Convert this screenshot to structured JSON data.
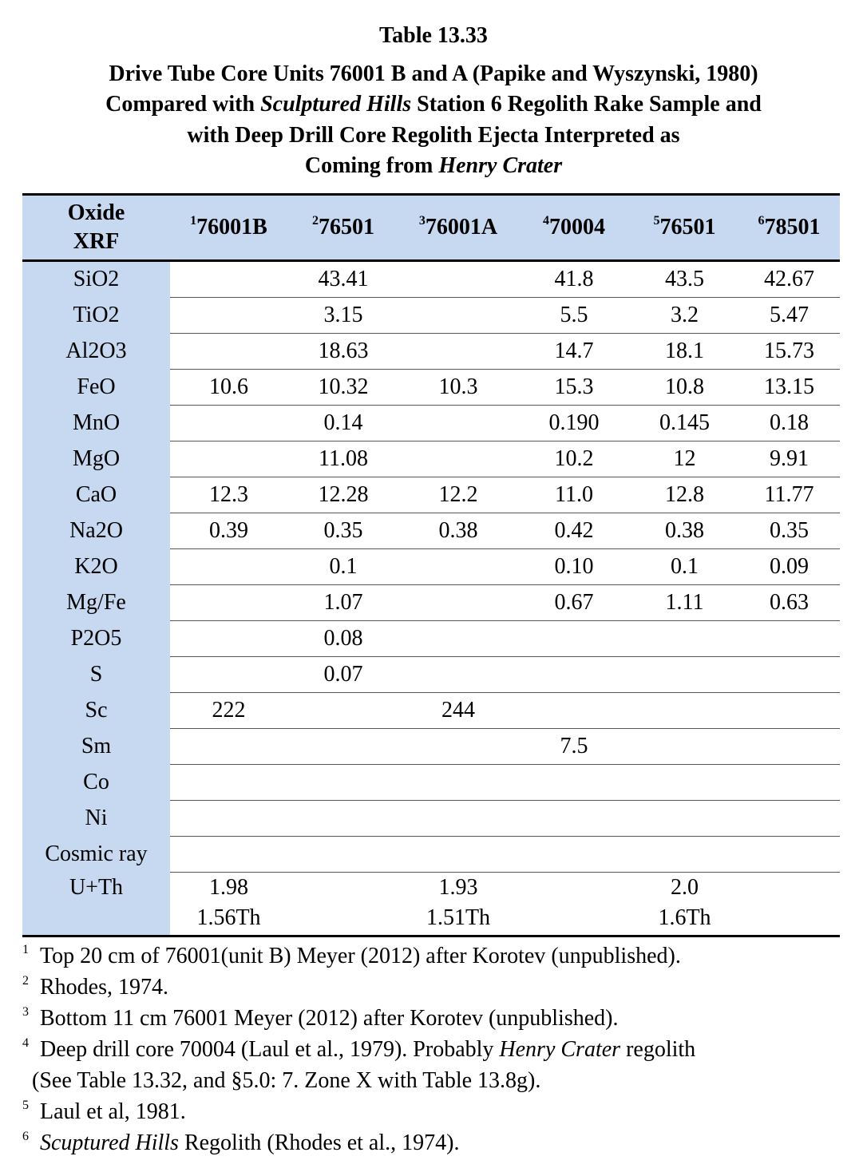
{
  "header": {
    "title": "Table 13.33",
    "subtitle_lines": [
      [
        {
          "text": "Drive Tube Core Units 76001 B and A (Papike and Wyszynski, 1980)"
        }
      ],
      [
        {
          "text": "Compared with "
        },
        {
          "text": "Sculptured Hills",
          "italic": true
        },
        {
          "text": " Station 6 Regolith Rake Sample and"
        }
      ],
      [
        {
          "text": "with Deep Drill Core Regolith Ejecta Interpreted as"
        }
      ],
      [
        {
          "text": "Coming from "
        },
        {
          "text": "Henry Crater",
          "italic": true
        }
      ]
    ]
  },
  "table": {
    "corner": [
      "Oxide",
      "XRF"
    ],
    "columns": [
      {
        "sup": "1",
        "text": "76001B"
      },
      {
        "sup": "2",
        "text": "76501"
      },
      {
        "sup": "3",
        "text": "76001A"
      },
      {
        "sup": "4",
        "text": "70004"
      },
      {
        "sup": "5",
        "text": "76501"
      },
      {
        "sup": "6",
        "text": "78501"
      }
    ],
    "rows": [
      [
        "SiO2",
        null,
        "43.41",
        null,
        "41.8",
        "43.5",
        "42.67"
      ],
      [
        "TiO2",
        null,
        "3.15",
        null,
        "5.5",
        "3.2",
        "5.47"
      ],
      [
        "Al2O3",
        null,
        "18.63",
        null,
        "14.7",
        "18.1",
        "15.73"
      ],
      [
        "FeO",
        "10.6",
        "10.32",
        "10.3",
        "15.3",
        "10.8",
        "13.15"
      ],
      [
        "MnO",
        null,
        "0.14",
        null,
        "0.190",
        "0.145",
        "0.18"
      ],
      [
        "MgO",
        null,
        "11.08",
        null,
        "10.2",
        "12",
        "9.91"
      ],
      [
        "CaO",
        "12.3",
        "12.28",
        "12.2",
        "11.0",
        "12.8",
        "11.77"
      ],
      [
        "Na2O",
        "0.39",
        "0.35",
        "0.38",
        "0.42",
        "0.38",
        "0.35"
      ],
      [
        "K2O",
        null,
        "0.1",
        null,
        "0.10",
        "0.1",
        "0.09"
      ],
      [
        "Mg/Fe",
        null,
        "1.07",
        null,
        "0.67",
        "1.11",
        "0.63"
      ],
      [
        "P2O5",
        null,
        "0.08",
        null,
        null,
        null,
        null
      ],
      [
        "S",
        null,
        "0.07",
        null,
        null,
        null,
        null
      ],
      [
        "Sc",
        "222",
        null,
        "244",
        null,
        null,
        null
      ],
      [
        "Sm",
        null,
        null,
        null,
        "7.5",
        null,
        null
      ],
      [
        "Co",
        null,
        null,
        null,
        null,
        null,
        null
      ],
      [
        "Ni",
        null,
        null,
        null,
        null,
        null,
        null
      ],
      [
        "Cosmic ray",
        null,
        null,
        null,
        null,
        null,
        null
      ],
      [
        "U+Th",
        "1.98\n1.56Th",
        null,
        "1.93\n1.51Th",
        null,
        "2.0\n1.6Th",
        null
      ]
    ]
  },
  "footnotes": [
    {
      "sup": "1",
      "lines": [
        [
          {
            "text": "Top 20 cm of 76001(unit B) Meyer (2012) after Korotev (unpublished)."
          }
        ]
      ]
    },
    {
      "sup": "2",
      "lines": [
        [
          {
            "text": "Rhodes, 1974."
          }
        ]
      ]
    },
    {
      "sup": "3",
      "lines": [
        [
          {
            "text": "Bottom 11 cm 76001 Meyer (2012) after Korotev (unpublished)."
          }
        ]
      ]
    },
    {
      "sup": "4",
      "lines": [
        [
          {
            "text": "Deep drill core 70004 (Laul et al., 1979). Probably "
          },
          {
            "text": "Henry Crater",
            "italic": true
          },
          {
            "text": " regolith"
          }
        ],
        [
          {
            "text": "(See Table 13.32, and §5.0: 7. Zone X with Table 13.8g)."
          }
        ]
      ]
    },
    {
      "sup": "5",
      "lines": [
        [
          {
            "text": "Laul et al, 1981."
          }
        ]
      ]
    },
    {
      "sup": "6",
      "lines": [
        [
          {
            "text": "Scuptured Hills",
            "italic": true
          },
          {
            "text": " Regolith (Rhodes et al., 1974)."
          }
        ]
      ]
    }
  ]
}
